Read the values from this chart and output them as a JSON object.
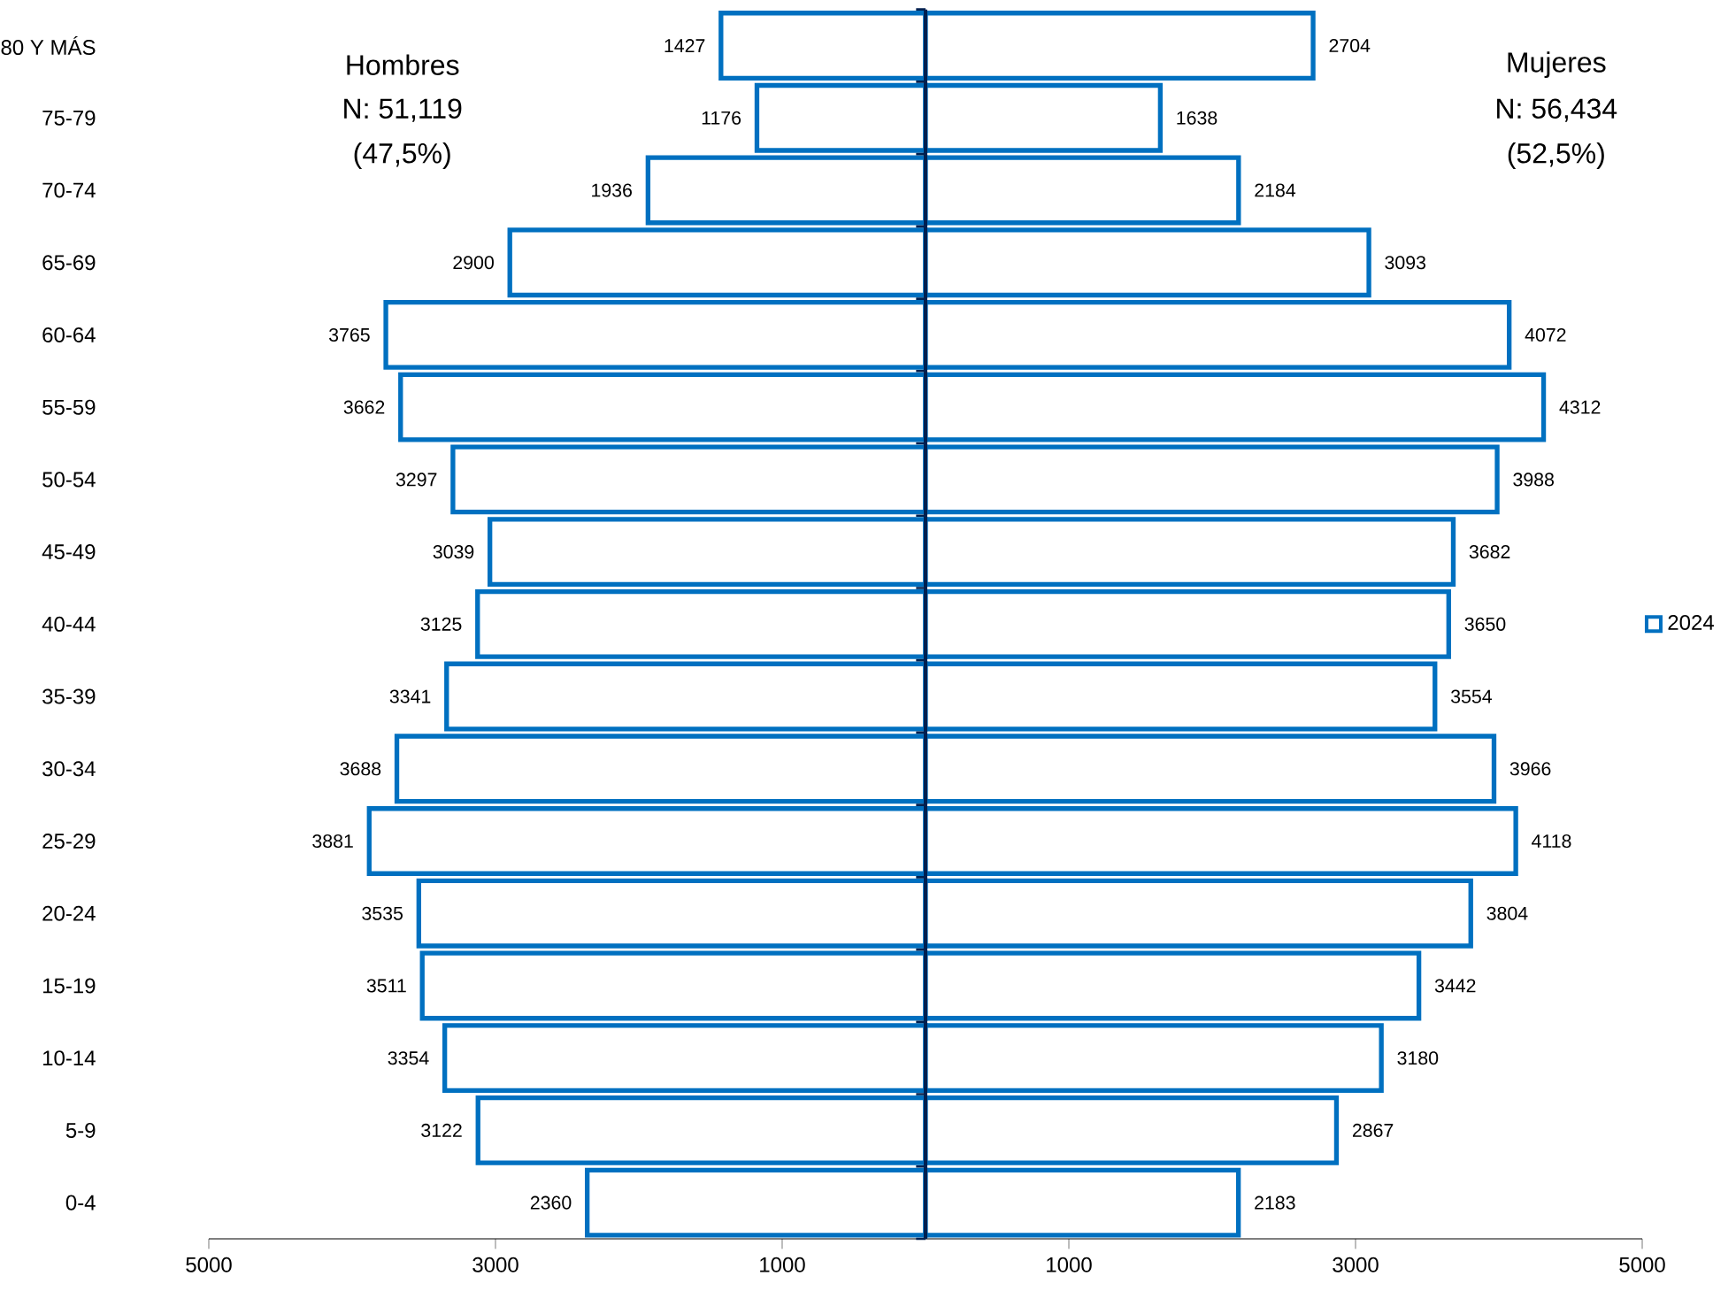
{
  "chart_data": [
    {
      "type": "bar",
      "orientation": "horizontal",
      "categories": [
        "80 Y MÁS",
        "75-79",
        "70-74",
        "65-69",
        "60-64",
        "55-59",
        "50-54",
        "45-49",
        "40-44",
        "35-39",
        "30-34",
        "25-29",
        "20-24",
        "15-19",
        "10-14",
        "5-9",
        "0-4"
      ],
      "series": [
        {
          "color": "#0070c0",
          "values": [
            1427,
            1176,
            1936,
            2900,
            3765,
            3662,
            3297,
            3039,
            3125,
            3341,
            3688,
            3881,
            3535,
            3511,
            3354,
            3122,
            2360
          ]
        }
      ],
      "data_labels": true,
      "xlim": [
        5000,
        0
      ],
      "xticks": [
        5000,
        3000,
        1000
      ],
      "annotations": [
        "Hombres",
        "N: 51,119",
        "(47,5%)"
      ]
    },
    {
      "type": "bar",
      "orientation": "horizontal",
      "categories": [
        null,
        null,
        null,
        null,
        null,
        null,
        null,
        null,
        null,
        null,
        null,
        null,
        null,
        null,
        null,
        null,
        null
      ],
      "series": [
        {
          "name": "2024",
          "color": "#0070c0",
          "values": [
            2704,
            1638,
            2184,
            3093,
            4072,
            4312,
            3988,
            3682,
            3650,
            3554,
            3966,
            4118,
            3804,
            3442,
            3180,
            2867,
            2183
          ]
        }
      ],
      "data_labels": true,
      "xlim": [
        0,
        5000
      ],
      "xticks": [
        1000,
        3000,
        5000
      ],
      "tick_labels": "x",
      "annotations": [
        "Mujeres",
        "N: 56,434",
        "(52,5%)"
      ],
      "legend": "right"
    }
  ]
}
